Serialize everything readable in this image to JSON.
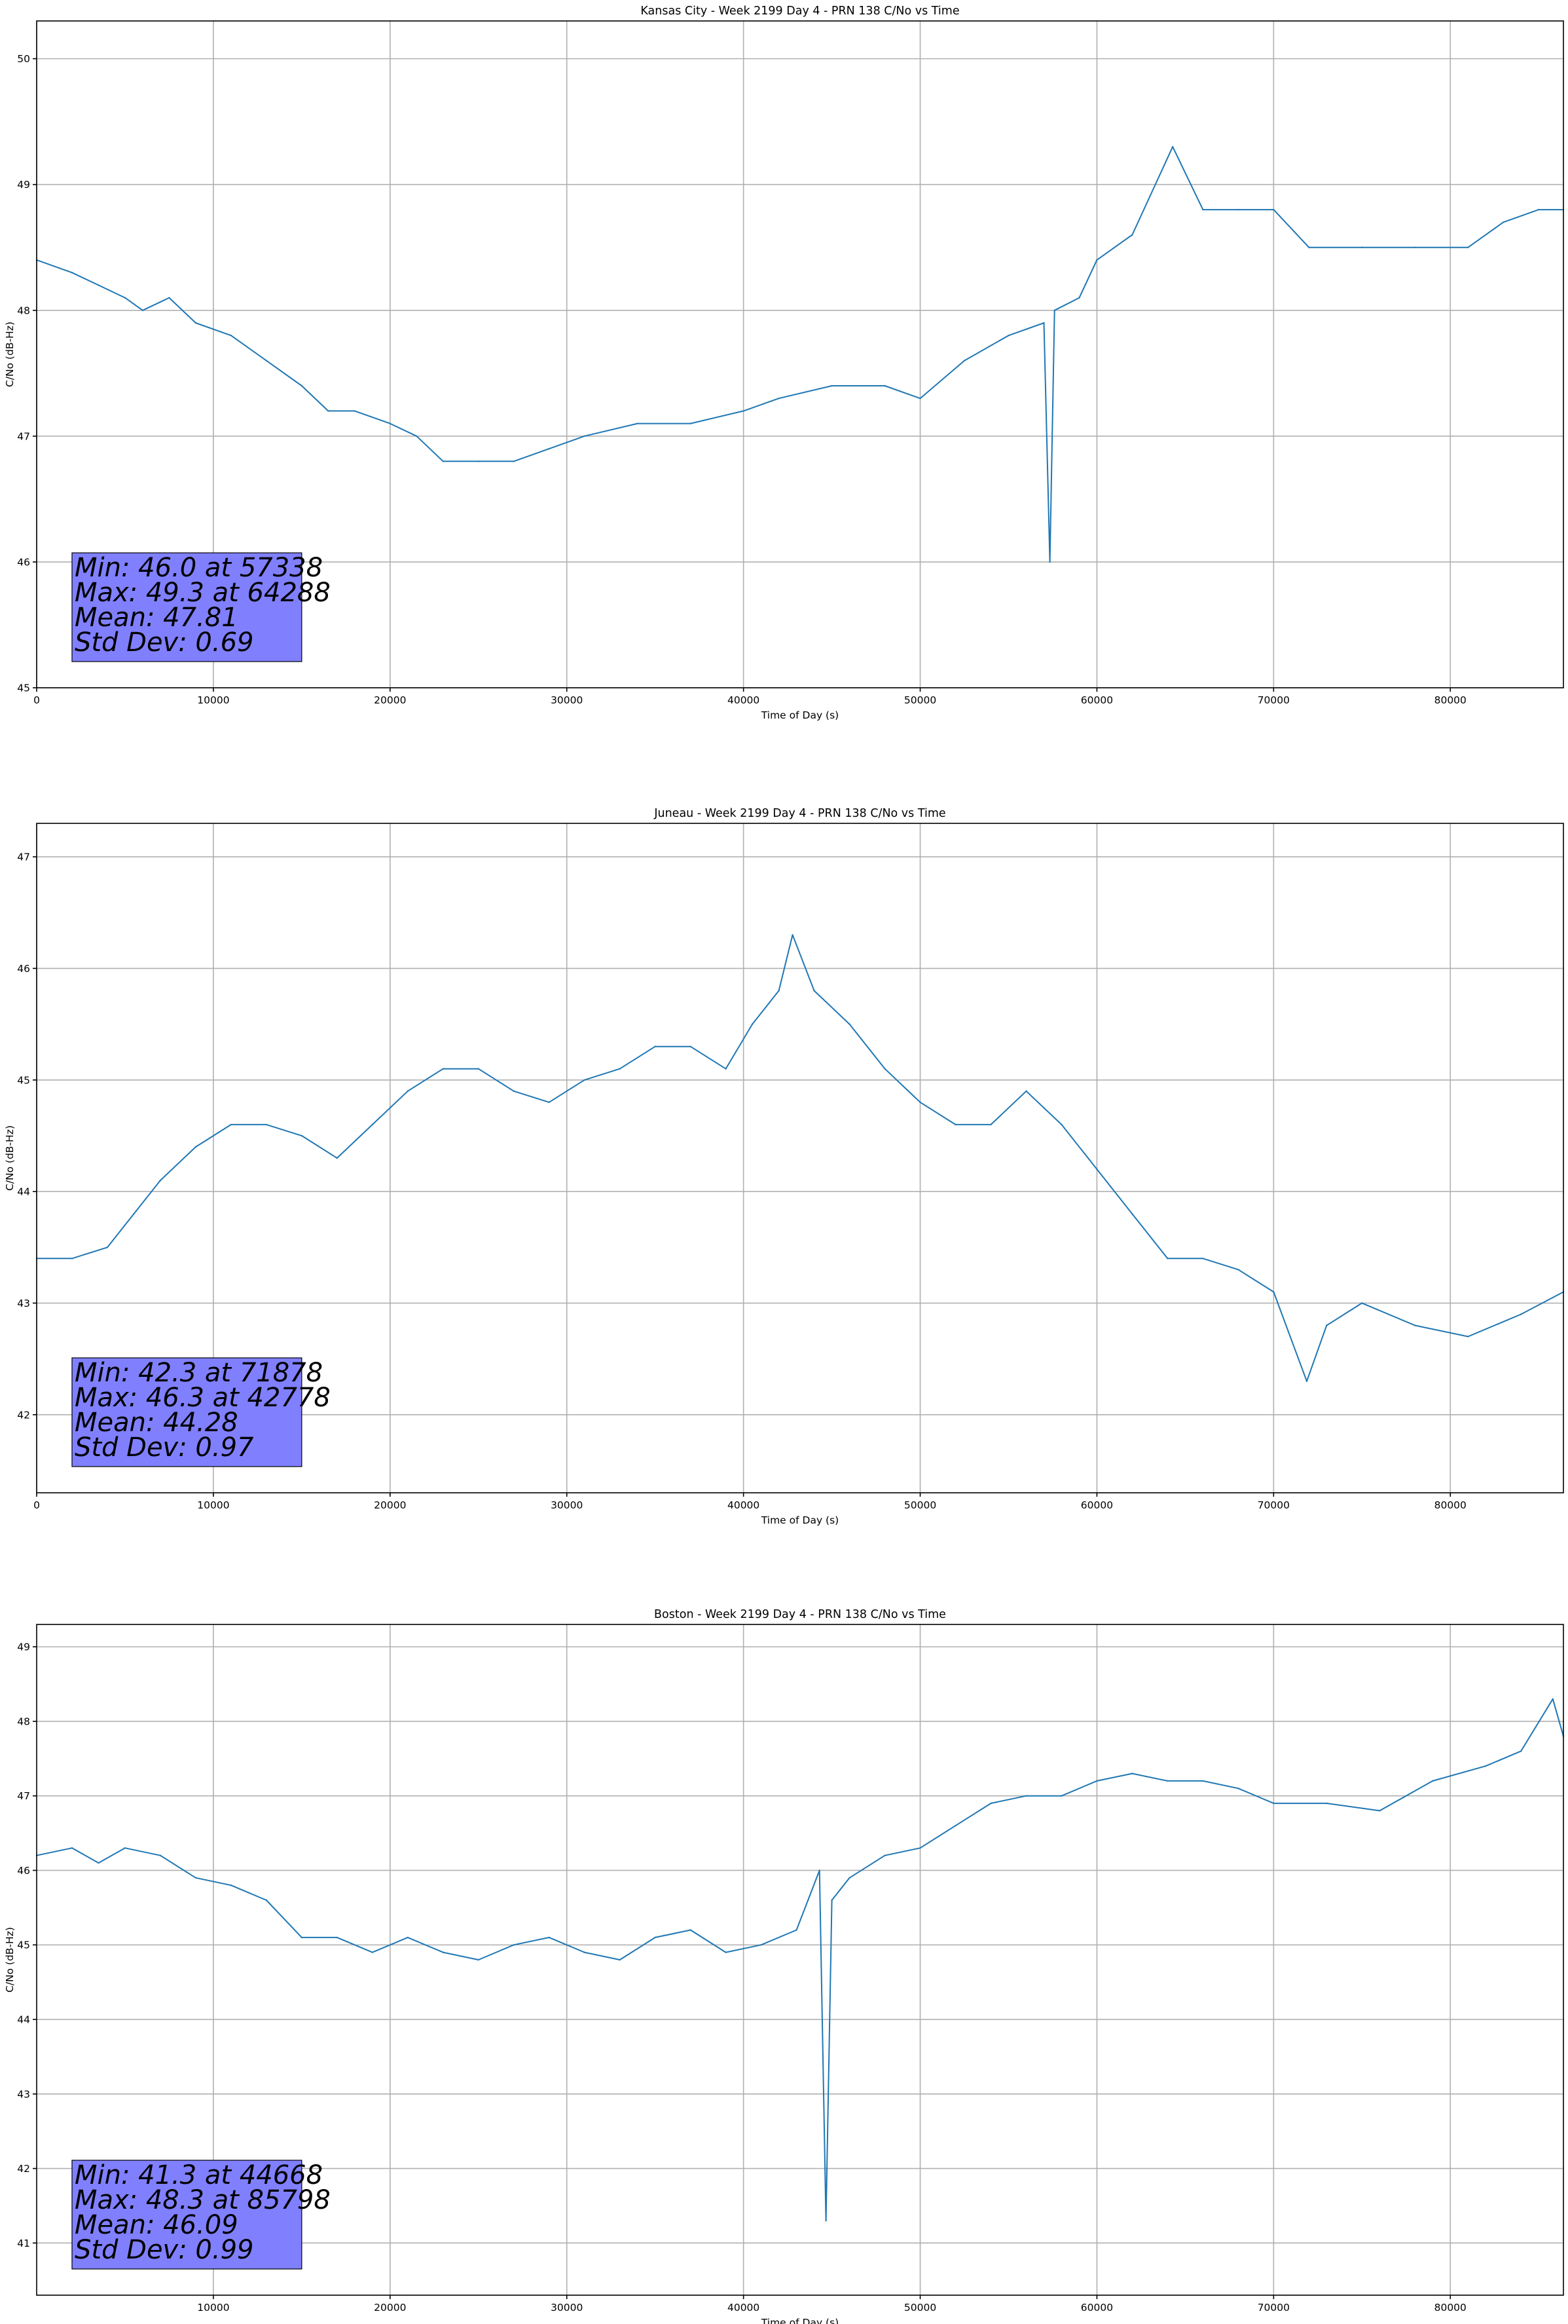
{
  "chart_data": [
    {
      "type": "line",
      "title": "Kansas City - Week 2199 Day 4 - PRN 138 C/No vs Time",
      "xlabel": "Time of Day (s)",
      "ylabel": "C/No (dB-Hz)",
      "xlim": [
        0,
        86400
      ],
      "ylim": [
        45,
        50.3
      ],
      "xticks": [
        0,
        10000,
        20000,
        30000,
        40000,
        50000,
        60000,
        70000,
        80000
      ],
      "yticks": [
        45,
        46,
        47,
        48,
        49,
        50
      ],
      "grid": true,
      "color": "#1f77b4",
      "x": [
        0,
        2000,
        3500,
        5000,
        6000,
        7500,
        9000,
        11000,
        13000,
        15000,
        16500,
        18000,
        20000,
        21500,
        23000,
        25000,
        27000,
        29000,
        31000,
        34000,
        37000,
        40000,
        42000,
        45000,
        48000,
        50000,
        52500,
        55000,
        57000,
        57338,
        57600,
        59000,
        60000,
        62000,
        64288,
        66000,
        68000,
        70000,
        72000,
        75000,
        78000,
        81000,
        83000,
        85000,
        86400
      ],
      "y": [
        48.4,
        48.3,
        48.2,
        48.1,
        48.0,
        48.1,
        47.9,
        47.8,
        47.6,
        47.4,
        47.2,
        47.2,
        47.1,
        47.0,
        46.8,
        46.8,
        46.8,
        46.9,
        47.0,
        47.1,
        47.1,
        47.2,
        47.3,
        47.4,
        47.4,
        47.3,
        47.6,
        47.8,
        47.9,
        46.0,
        48.0,
        48.1,
        48.4,
        48.6,
        49.3,
        48.8,
        48.8,
        48.8,
        48.5,
        48.5,
        48.5,
        48.5,
        48.7,
        48.8,
        48.8
      ],
      "stats": {
        "min": "Min: 46.0 at 57338",
        "max": "Max: 49.3 at 64288",
        "mean": "Mean: 47.81",
        "std": "Std Dev: 0.69"
      }
    },
    {
      "type": "line",
      "title": "Juneau - Week 2199 Day 4 - PRN 138 C/No vs Time",
      "xlabel": "Time of Day (s)",
      "ylabel": "C/No (dB-Hz)",
      "xlim": [
        0,
        86400
      ],
      "ylim": [
        41.3,
        47.3
      ],
      "xticks": [
        0,
        10000,
        20000,
        30000,
        40000,
        50000,
        60000,
        70000,
        80000
      ],
      "yticks": [
        42,
        43,
        44,
        45,
        46,
        47
      ],
      "grid": true,
      "color": "#1f77b4",
      "x": [
        0,
        2000,
        4000,
        5500,
        7000,
        9000,
        11000,
        13000,
        15000,
        17000,
        19000,
        21000,
        23000,
        25000,
        27000,
        29000,
        31000,
        33000,
        35000,
        37000,
        39000,
        40500,
        42000,
        42778,
        44000,
        46000,
        48000,
        50000,
        52000,
        54000,
        56000,
        58000,
        60000,
        62000,
        64000,
        66000,
        68000,
        70000,
        71878,
        73000,
        75000,
        78000,
        81000,
        84000,
        86400
      ],
      "y": [
        43.4,
        43.4,
        43.5,
        43.8,
        44.1,
        44.4,
        44.6,
        44.6,
        44.5,
        44.3,
        44.6,
        44.9,
        45.1,
        45.1,
        44.9,
        44.8,
        45.0,
        45.1,
        45.3,
        45.3,
        45.1,
        45.5,
        45.8,
        46.3,
        45.8,
        45.5,
        45.1,
        44.8,
        44.6,
        44.6,
        44.9,
        44.6,
        44.2,
        43.8,
        43.4,
        43.4,
        43.3,
        43.1,
        42.3,
        42.8,
        43.0,
        42.8,
        42.7,
        42.9,
        43.1
      ],
      "stats": {
        "min": "Min: 42.3 at 71878",
        "max": "Max: 46.3 at 42778",
        "mean": "Mean: 44.28",
        "std": "Std Dev: 0.97"
      }
    },
    {
      "type": "line",
      "title": "Boston - Week 2199 Day 4 - PRN 138 C/No vs Time",
      "xlabel": "Time of Day (s)",
      "ylabel": "C/No (dB-Hz)",
      "xlim": [
        0,
        86400
      ],
      "ylim": [
        40.3,
        49.3
      ],
      "xticks": [
        10000,
        20000,
        30000,
        40000,
        50000,
        60000,
        70000,
        80000
      ],
      "yticks": [
        41,
        42,
        43,
        44,
        45,
        46,
        47,
        48,
        49
      ],
      "grid": true,
      "color": "#1f77b4",
      "x": [
        0,
        2000,
        3500,
        5000,
        7000,
        9000,
        11000,
        13000,
        15000,
        17000,
        19000,
        21000,
        23000,
        25000,
        27000,
        29000,
        31000,
        33000,
        35000,
        37000,
        39000,
        41000,
        43000,
        44300,
        44668,
        45000,
        46000,
        48000,
        50000,
        52000,
        54000,
        56000,
        58000,
        60000,
        62000,
        64000,
        66000,
        68000,
        70000,
        73000,
        76000,
        79000,
        82000,
        84000,
        85798,
        86400
      ],
      "y": [
        46.2,
        46.3,
        46.1,
        46.3,
        46.2,
        45.9,
        45.8,
        45.6,
        45.1,
        45.1,
        44.9,
        45.1,
        44.9,
        44.8,
        45.0,
        45.1,
        44.9,
        44.8,
        45.1,
        45.2,
        44.9,
        45.0,
        45.2,
        46.0,
        41.3,
        45.6,
        45.9,
        46.2,
        46.3,
        46.6,
        46.9,
        47.0,
        47.0,
        47.2,
        47.3,
        47.2,
        47.2,
        47.1,
        46.9,
        46.9,
        46.8,
        47.2,
        47.4,
        47.6,
        48.3,
        47.8
      ],
      "stats": {
        "min": "Min: 41.3 at 44668",
        "max": "Max: 48.3 at 85798",
        "mean": "Mean: 46.09",
        "std": "Std Dev: 0.99"
      }
    }
  ]
}
